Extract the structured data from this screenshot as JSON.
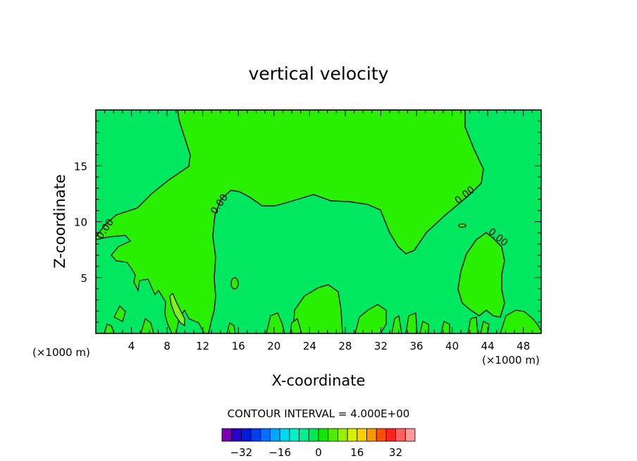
{
  "chart_data": {
    "type": "contour",
    "title": "vertical velocity",
    "xlabel": "X-coordinate",
    "ylabel": "Z-coordinate",
    "x_unit_left": "(×1000 m)",
    "x_unit_right": "(×1000 m)",
    "xlim": [
      0,
      50
    ],
    "ylim": [
      0,
      20
    ],
    "x_ticks": [
      4,
      8,
      12,
      16,
      20,
      24,
      28,
      32,
      36,
      40,
      44,
      48
    ],
    "y_ticks": [
      5,
      10,
      15
    ],
    "contour_labels": [
      "0.00",
      "0.00",
      "0.00",
      "0.00"
    ],
    "contour_interval_text": "CONTOUR INTERVAL = 4.000E+00",
    "colorbar": {
      "levels": [
        -36,
        -32,
        -28,
        -24,
        -20,
        -16,
        -12,
        -8,
        -4,
        0,
        4,
        8,
        12,
        16,
        20,
        24,
        28,
        32,
        36
      ],
      "tick_labels": [
        "-32",
        "-16",
        "0",
        "16",
        "32"
      ],
      "tick_values": [
        -32,
        -16,
        0,
        16,
        32
      ],
      "colors": [
        "#7a00b0",
        "#2a00c8",
        "#0018e0",
        "#0040f0",
        "#0070ff",
        "#00a8ff",
        "#00d8f0",
        "#00f0c8",
        "#00f090",
        "#00e858",
        "#10e800",
        "#50ec00",
        "#98f000",
        "#d8f000",
        "#ffd000",
        "#ff9800",
        "#ff5000",
        "#ff2020",
        "#ff6060",
        "#ff9898"
      ]
    },
    "colors": {
      "background_field": "#00e860",
      "positive_region": "#28f000",
      "strong_positive": "#80f020",
      "contour_line": "#000000"
    }
  }
}
